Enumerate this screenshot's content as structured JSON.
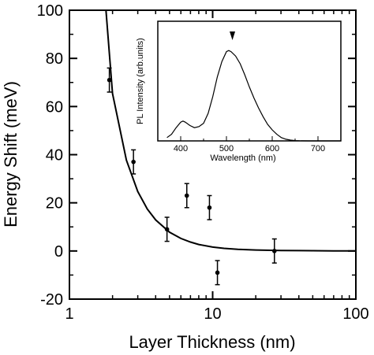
{
  "chart_data": [
    {
      "type": "scatter",
      "xlabel": "Layer Thickness (nm)",
      "ylabel": "Energy Shift (meV)",
      "x_scale": "log",
      "xlim": [
        1,
        100
      ],
      "ylim": [
        -20,
        100
      ],
      "x_ticks": [
        1,
        10,
        100
      ],
      "x_tick_labels": [
        "1",
        "10",
        "100"
      ],
      "y_ticks": [
        -20,
        0,
        20,
        40,
        60,
        80,
        100
      ],
      "y_tick_labels": [
        "-20",
        "0",
        "20",
        "40",
        "60",
        "80",
        "100"
      ],
      "points": [
        {
          "x": 1.9,
          "y": 71,
          "err": 5
        },
        {
          "x": 2.8,
          "y": 37,
          "err": 5
        },
        {
          "x": 4.8,
          "y": 9,
          "err": 5
        },
        {
          "x": 6.6,
          "y": 23,
          "err": 5
        },
        {
          "x": 9.5,
          "y": 18,
          "err": 5
        },
        {
          "x": 10.8,
          "y": -9,
          "err": 5
        },
        {
          "x": 27,
          "y": 0,
          "err": 5
        }
      ],
      "fit_curve": {
        "x": [
          1.8,
          2,
          2.5,
          3,
          3.5,
          4,
          5,
          6,
          7,
          8,
          10,
          12,
          15,
          20,
          30,
          50,
          70,
          100
        ],
        "y": [
          100,
          65.4,
          37.7,
          24.7,
          17.4,
          12.9,
          7.8,
          5.2,
          3.7,
          2.7,
          1.6,
          1.1,
          0.7,
          0.4,
          0.2,
          0.1,
          0,
          0
        ]
      },
      "grid": false,
      "legend": "none"
    },
    {
      "type": "line",
      "xlabel": "Wavelength (nm)",
      "ylabel": "PL Intensity (arb.units)",
      "xlim": [
        350,
        750
      ],
      "ylim": [
        0,
        1
      ],
      "x_ticks": [
        400,
        500,
        600,
        700
      ],
      "x_tick_labels": [
        "400",
        "500",
        "600",
        "700"
      ],
      "x": [
        370,
        380,
        390,
        400,
        405,
        410,
        420,
        430,
        440,
        450,
        460,
        470,
        480,
        490,
        500,
        505,
        510,
        520,
        530,
        540,
        550,
        560,
        570,
        580,
        590,
        600,
        610,
        620,
        630,
        640,
        650,
        660,
        680,
        700,
        750
      ],
      "y": [
        0.03,
        0.06,
        0.12,
        0.17,
        0.18,
        0.17,
        0.14,
        0.12,
        0.13,
        0.16,
        0.25,
        0.4,
        0.58,
        0.72,
        0.81,
        0.82,
        0.81,
        0.77,
        0.7,
        0.6,
        0.49,
        0.39,
        0.3,
        0.22,
        0.15,
        0.1,
        0.06,
        0.03,
        0.015,
        0.007,
        0.003,
        0.001,
        0,
        0,
        0
      ],
      "peak_marker": {
        "x": 513
      },
      "grid": false,
      "legend": "none"
    }
  ]
}
